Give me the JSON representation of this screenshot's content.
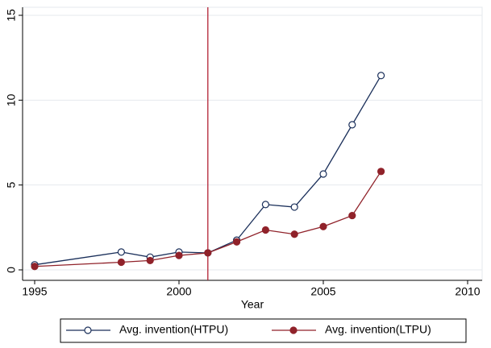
{
  "chart_data": {
    "type": "line",
    "x_label": "Year",
    "x": [
      1995,
      1998,
      1999,
      2000,
      2001,
      2002,
      2003,
      2004,
      2005,
      2006,
      2007
    ],
    "series": [
      {
        "name": "Avg. invention(HTPU)",
        "color": "#1a2f5a",
        "marker": "hollow",
        "values": [
          0.3,
          1.05,
          0.75,
          1.05,
          1.0,
          1.75,
          3.85,
          3.7,
          5.65,
          8.55,
          11.45
        ]
      },
      {
        "name": "Avg. invention(LTPU)",
        "color": "#90222a",
        "marker": "filled",
        "values": [
          0.2,
          0.45,
          0.55,
          0.85,
          1.0,
          1.65,
          2.35,
          2.1,
          2.55,
          3.2,
          5.8
        ]
      }
    ],
    "xlim": [
      1995,
      2010
    ],
    "xticks": [
      1995,
      2000,
      2005,
      2010
    ],
    "ylim": [
      0,
      15
    ],
    "yticks": [
      0,
      5,
      10,
      15
    ],
    "grid": true,
    "vline_x": 2001,
    "vline_color": "#b22234",
    "legend": "bottom"
  }
}
